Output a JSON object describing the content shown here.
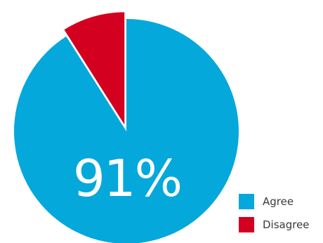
{
  "chart_data": {
    "type": "pie",
    "categories": [
      "Agree",
      "Disagree"
    ],
    "values": [
      91,
      9
    ],
    "center_label": "91%",
    "legend_position": "bottom-right",
    "colors": [
      "#05a8db",
      "#d4001f"
    ],
    "exploded": "Disagree"
  }
}
